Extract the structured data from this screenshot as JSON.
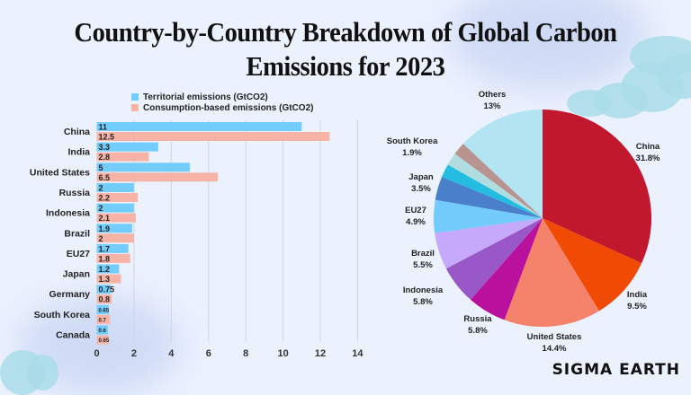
{
  "title_lines": [
    "Country-by-Country Breakdown of Global Carbon",
    "Emissions for 2023"
  ],
  "brand": "SIGMA EARTH",
  "colors": {
    "background": "#ecf1fe",
    "territorial": "#73cdfc",
    "consumption": "#f7b4a6"
  },
  "chart_data": [
    {
      "type": "bar",
      "orientation": "horizontal",
      "categories": [
        "China",
        "India",
        "United States",
        "Russia",
        "Indonesia",
        "Brazil",
        "EU27",
        "Japan",
        "Germany",
        "South Korea",
        "Canada"
      ],
      "series": [
        {
          "name": "Territorial emissions (GtCO2)",
          "color": "#73cdfc",
          "values": [
            11,
            3.3,
            5,
            2,
            2,
            1.9,
            1.7,
            1.2,
            0.75,
            0.65,
            0.6
          ],
          "labels": [
            "11",
            "3.3",
            "5",
            "2",
            "2",
            "1.9",
            "1.7",
            "1.2",
            "0.75",
            "0.65",
            "0.6"
          ]
        },
        {
          "name": "Consumption-based emissions (GtCO2)",
          "color": "#f7b4a6",
          "values": [
            12.5,
            2.8,
            6.5,
            2.2,
            2.1,
            2,
            1.8,
            1.3,
            0.8,
            0.7,
            0.65
          ],
          "labels": [
            "12.5",
            "2.8",
            "6.5",
            "2.2",
            "2.1",
            "2",
            "1.8",
            "1.3",
            "0.8",
            "0.7",
            "0.65"
          ]
        }
      ],
      "xlim": [
        0,
        14
      ],
      "xticks": [
        "0",
        "2",
        "4",
        "6",
        "8",
        "10",
        "12",
        "14"
      ],
      "grid": true,
      "legend": "top"
    },
    {
      "type": "pie",
      "start": "top, clockwise",
      "slices": [
        {
          "label": "China",
          "pct": "31.8%",
          "value": 31.8,
          "color": "#c1182d"
        },
        {
          "label": "India",
          "pct": "9.5%",
          "value": 9.5,
          "color": "#f14a05"
        },
        {
          "label": "United States",
          "pct": "14.4%",
          "value": 14.4,
          "color": "#f5826a"
        },
        {
          "label": "Russia",
          "pct": "5.8%",
          "value": 5.8,
          "color": "#b9119d"
        },
        {
          "label": "Indonesia",
          "pct": "5.8%",
          "value": 5.8,
          "color": "#9a57c8"
        },
        {
          "label": "Brazil",
          "pct": "5.5%",
          "value": 5.5,
          "color": "#c6a9fb"
        },
        {
          "label": "EU27",
          "pct": "4.9%",
          "value": 4.9,
          "color": "#72cbfb"
        },
        {
          "label": "Japan",
          "pct": "3.5%",
          "value": 3.5,
          "color": "#4a7fcc"
        },
        {
          "label": "",
          "pct": "",
          "value": 2.0,
          "color": "#22bde0"
        },
        {
          "label": "",
          "pct": "",
          "value": 1.9,
          "color": "#b0dde0"
        },
        {
          "label": "South Korea",
          "pct": "1.9%",
          "value": 1.9,
          "color": "#b99390"
        },
        {
          "label": "Others",
          "pct": "13%",
          "value": 13,
          "color": "#b2e4f1"
        }
      ]
    }
  ]
}
